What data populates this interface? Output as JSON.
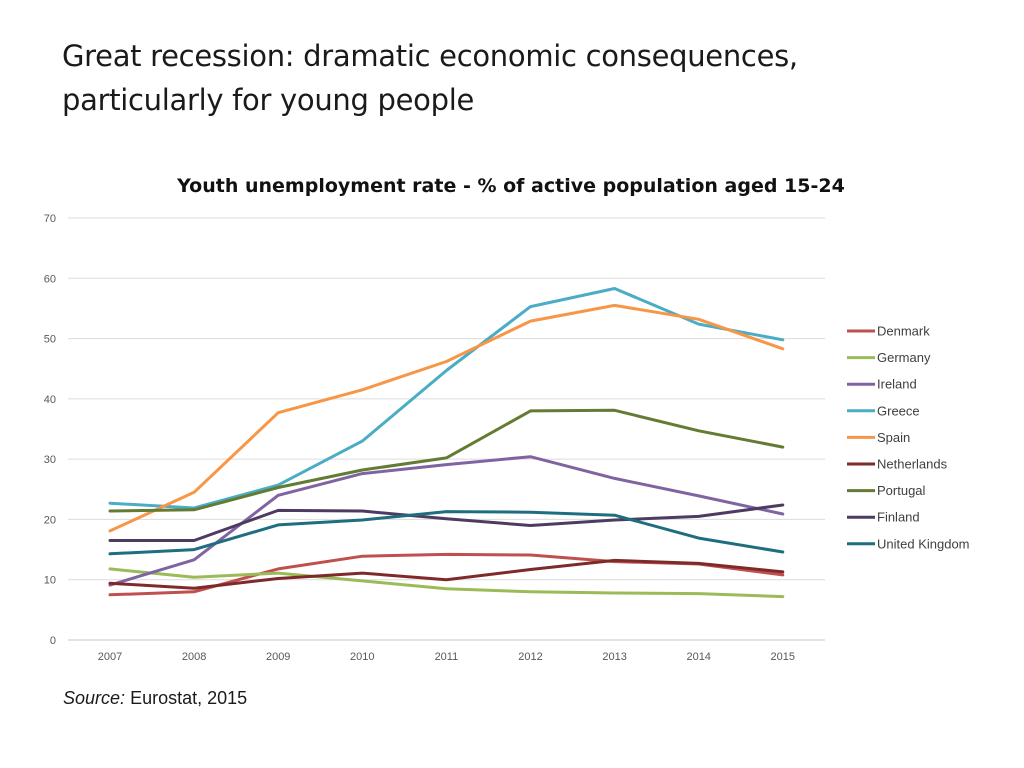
{
  "slide": {
    "title": "Great recession: dramatic economic consequences, particularly for young people",
    "source_label": "Source:",
    "source_text": "Eurostat, 2015"
  },
  "chart_data": {
    "type": "line",
    "title": "Youth unemployment rate - % of active population aged 15-24",
    "xlabel": "",
    "ylabel": "",
    "categories": [
      "2007",
      "2008",
      "2009",
      "2010",
      "2011",
      "2012",
      "2013",
      "2014",
      "2015"
    ],
    "ylim": [
      0,
      70
    ],
    "yticks": [
      0,
      10,
      20,
      30,
      40,
      50,
      60,
      70
    ],
    "grid": true,
    "legend_position": "right",
    "series": [
      {
        "name": "Denmark",
        "color": "#c0504d",
        "values": [
          7.5,
          8.0,
          11.8,
          13.9,
          14.2,
          14.1,
          13.0,
          12.6,
          10.8
        ]
      },
      {
        "name": "Germany",
        "color": "#9bbb59",
        "values": [
          11.8,
          10.4,
          11.1,
          9.8,
          8.5,
          8.0,
          7.8,
          7.7,
          7.2
        ]
      },
      {
        "name": "Ireland",
        "color": "#8064a2",
        "values": [
          9.1,
          13.3,
          24.0,
          27.6,
          29.1,
          30.4,
          26.8,
          23.9,
          20.9
        ]
      },
      {
        "name": "Greece",
        "color": "#4bacc6",
        "values": [
          22.7,
          21.9,
          25.7,
          33.0,
          44.7,
          55.3,
          58.3,
          52.4,
          49.8
        ]
      },
      {
        "name": "Spain",
        "color": "#f79646",
        "values": [
          18.1,
          24.5,
          37.7,
          41.5,
          46.2,
          52.9,
          55.5,
          53.2,
          48.3
        ]
      },
      {
        "name": "Netherlands",
        "color": "#7f2a2a",
        "values": [
          9.4,
          8.6,
          10.2,
          11.1,
          10.0,
          11.7,
          13.2,
          12.7,
          11.3
        ]
      },
      {
        "name": "Portugal",
        "color": "#637b32",
        "values": [
          21.4,
          21.6,
          25.3,
          28.2,
          30.2,
          38.0,
          38.1,
          34.7,
          32.0
        ]
      },
      {
        "name": "Finland",
        "color": "#4e3b62",
        "values": [
          16.5,
          16.5,
          21.5,
          21.4,
          20.1,
          19.0,
          19.9,
          20.5,
          22.4
        ]
      },
      {
        "name": "United Kingdom",
        "color": "#1f6e7f",
        "values": [
          14.3,
          15.0,
          19.1,
          19.9,
          21.3,
          21.2,
          20.7,
          16.9,
          14.6
        ]
      }
    ]
  }
}
